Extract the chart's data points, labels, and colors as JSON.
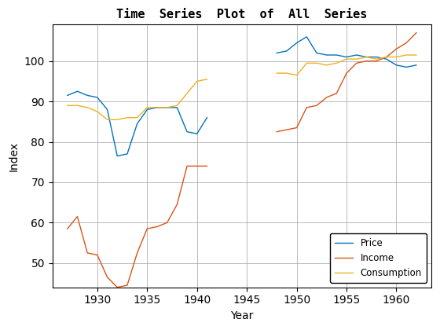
{
  "title": "Time  Series  Plot  of  All  Series",
  "xlabel": "Year",
  "ylabel": "Index",
  "price_years": [
    1927,
    1928,
    1929,
    1930,
    1931,
    1932,
    1933,
    1934,
    1935,
    1936,
    1937,
    1938,
    1939,
    1940,
    1941,
    null,
    1948,
    1949,
    1950,
    1951,
    1952,
    1953,
    1954,
    1955,
    1956,
    1957,
    1958,
    1959,
    1960,
    1961,
    1962
  ],
  "price_values": [
    91.5,
    92.5,
    91.5,
    91.0,
    88.0,
    76.5,
    77.0,
    84.5,
    88.0,
    88.5,
    88.5,
    88.5,
    82.5,
    82.0,
    86.0,
    null,
    102.0,
    102.5,
    104.5,
    106.0,
    102.0,
    101.5,
    101.5,
    101.0,
    101.5,
    101.0,
    101.0,
    100.5,
    99.0,
    98.5,
    99.0
  ],
  "income_years": [
    1927,
    1928,
    1929,
    1930,
    1931,
    1932,
    1933,
    1934,
    1935,
    1936,
    1937,
    1938,
    1939,
    1940,
    1941,
    null,
    1948,
    1949,
    1950,
    1951,
    1952,
    1953,
    1954,
    1955,
    1956,
    1957,
    1958,
    1959,
    1960,
    1961,
    1962
  ],
  "income_values": [
    58.5,
    61.5,
    52.5,
    52.0,
    46.5,
    44.0,
    44.5,
    52.5,
    58.5,
    59.0,
    60.0,
    64.5,
    74.0,
    74.0,
    74.0,
    null,
    82.5,
    83.0,
    83.5,
    88.5,
    89.0,
    91.0,
    92.0,
    97.0,
    99.5,
    100.0,
    100.0,
    101.0,
    103.0,
    104.5,
    107.0
  ],
  "consumption_years": [
    1927,
    1928,
    1929,
    1930,
    1931,
    1932,
    1933,
    1934,
    1935,
    1936,
    1937,
    1938,
    1939,
    1940,
    1941,
    null,
    1948,
    1949,
    1950,
    1951,
    1952,
    1953,
    1954,
    1955,
    1956,
    1957,
    1958,
    1959,
    1960,
    1961,
    1962
  ],
  "consumption_values": [
    89.0,
    89.0,
    88.5,
    87.5,
    85.5,
    85.5,
    86.0,
    86.0,
    88.5,
    88.5,
    88.5,
    89.0,
    92.0,
    95.0,
    95.5,
    null,
    97.0,
    97.0,
    96.5,
    99.5,
    99.5,
    99.0,
    99.5,
    100.5,
    100.5,
    101.0,
    100.5,
    101.0,
    101.0,
    101.5,
    101.5
  ],
  "price_color": "#0072BD",
  "income_color": "#D95319",
  "consumption_color": "#EDB120",
  "bg_color": "#ffffff",
  "grid_color": "#b0b0b0",
  "xlim": [
    1925.5,
    1963.5
  ],
  "ylim": [
    44,
    109
  ],
  "xticks": [
    1930,
    1935,
    1940,
    1945,
    1950,
    1955,
    1960
  ],
  "yticks": [
    50,
    60,
    70,
    80,
    90,
    100
  ],
  "legend_labels": [
    "Price",
    "Income",
    "Consumption"
  ],
  "legend_loc": "lower right",
  "figwidth": 5.6,
  "figheight": 4.2,
  "dpi": 100
}
